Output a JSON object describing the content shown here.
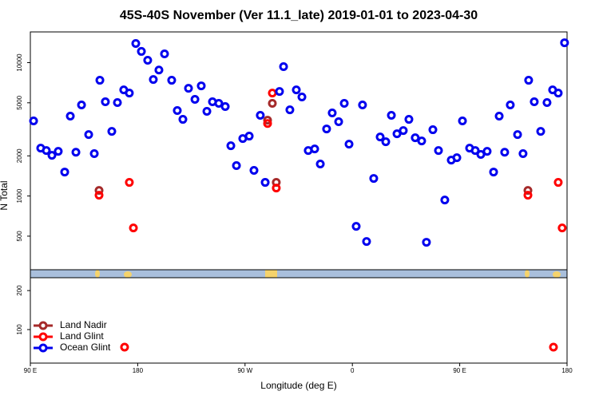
{
  "chart_data": [
    {
      "type": "scatter",
      "title": "45S-40S November (Ver 11.1_late)   2019-01-01 to 2023-04-30",
      "ylabel": "N Total",
      "ylog": true,
      "xlim": [
        90,
        540
      ],
      "ylim": [
        280,
        17000
      ],
      "yticks": [
        500,
        1000,
        2000,
        5000,
        10000
      ],
      "series": [
        {
          "color": "#a52a2a",
          "x": [
            147.6,
            288.9,
            292.9,
            296.2,
            507.2
          ],
          "values": [
            1101,
            3700,
            4955,
            1265,
            1101
          ]
        },
        {
          "color": "#ff0000",
          "x": [
            147.6,
            173,
            176.4,
            288.9,
            292.9,
            296.2,
            507.2,
            532.6,
            535.9
          ],
          "values": [
            1014,
            1265,
            576,
            3500,
            5912,
            1148,
            1014,
            1265,
            576
          ]
        },
        {
          "color": "#0000ee",
          "x": [
            92.7,
            98.7,
            103.4,
            108.1,
            113.4,
            118.8,
            123.5,
            128.2,
            132.9,
            138.9,
            143.6,
            148.3,
            152.9,
            158.3,
            163,
            168.3,
            173,
            178.4,
            183.1,
            188.4,
            193.1,
            197.8,
            202.5,
            208.5,
            213.2,
            217.9,
            222.6,
            228,
            233.3,
            238,
            242.7,
            248,
            253.4,
            258.1,
            262.8,
            268.1,
            273.5,
            277.5,
            282.8,
            286.9,
            298.9,
            302.3,
            307.6,
            313,
            317.7,
            323,
            328.4,
            333.1,
            338.4,
            343.1,
            348.5,
            353.2,
            357.2,
            363.2,
            368.5,
            371.9,
            377.9,
            383.3,
            388,
            392.7,
            397.4,
            402.7,
            407.4,
            412.7,
            418.1,
            422.1,
            427.5,
            432.2,
            437.5,
            442.9,
            447.6,
            452.3,
            458.3,
            463,
            467.7,
            473,
            478.4,
            483.1,
            487.7,
            492.4,
            498.5,
            503.1,
            507.8,
            512.5,
            517.9,
            523.2,
            527.9,
            532.6,
            537.9
          ],
          "values": [
            3656,
            2285,
            2194,
            2018,
            2163,
            1513,
            3974,
            2130,
            4819,
            2890,
            2080,
            7380,
            5093,
            3053,
            5020,
            6250,
            5912,
            13930,
            12140,
            10420,
            7480,
            8800,
            11640,
            7380,
            4375,
            3757,
            6420,
            5307,
            6700,
            4318,
            5093,
            4955,
            4690,
            2383,
            1690,
            2698,
            2813,
            1556,
            4030,
            1265,
            6080,
            9333,
            4430,
            6250,
            5530,
            2194,
            2254,
            1738,
            3184,
            4198,
            3606,
            4955,
            2449,
            592,
            4819,
            456,
            1355,
            2773,
            2552,
            4030,
            2928,
            3097,
            3757,
            2735,
            2588,
            450,
            3141,
            2194,
            933,
            1858,
            1938,
            3656,
            2285,
            2194,
            2050,
            2163,
            1513,
            3974,
            2130,
            4819,
            2890,
            2080,
            7380,
            5093,
            3053,
            5020,
            6250,
            5912,
            14100
          ]
        }
      ]
    },
    {
      "type": "scatter",
      "xlabel": "Longitude (deg E)",
      "xlim": [
        90,
        540
      ],
      "ylim": [
        14,
        233
      ],
      "yticks": [
        100,
        200
      ],
      "xticks": [
        {
          "value": 90,
          "label": "90 E"
        },
        180,
        {
          "value": 270,
          "label": "90 W"
        },
        {
          "value": 360,
          "label": "0"
        },
        {
          "value": 450,
          "label": "90 E"
        },
        {
          "value": 540,
          "label": "180"
        }
      ],
      "series": [
        {
          "name": "Land Nadir",
          "color": "#a52a2a",
          "x": [],
          "values": []
        },
        {
          "name": "Land Glint",
          "color": "#ff0000",
          "x": [
            169,
            528.6
          ],
          "values": [
            55,
            55
          ]
        },
        {
          "name": "Ocean Glint",
          "color": "#0000ee",
          "x": [],
          "values": []
        }
      ]
    }
  ]
}
